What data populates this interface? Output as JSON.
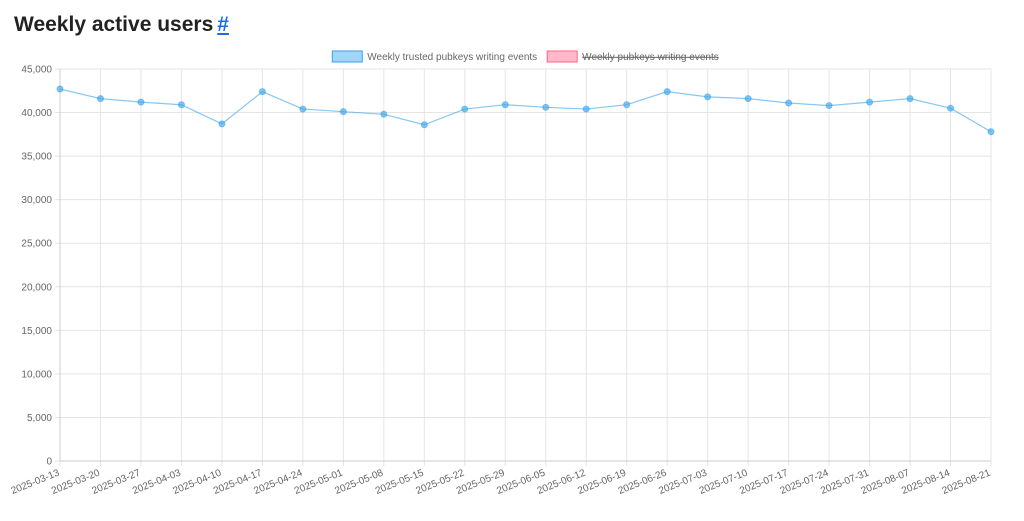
{
  "page": {
    "title": "Weekly active users",
    "link": "#"
  },
  "chart_data": {
    "type": "line",
    "categories": [
      "2025-03-13",
      "2025-03-20",
      "2025-03-27",
      "2025-04-03",
      "2025-04-10",
      "2025-04-17",
      "2025-04-24",
      "2025-05-01",
      "2025-05-08",
      "2025-05-15",
      "2025-05-22",
      "2025-05-29",
      "2025-06-05",
      "2025-06-12",
      "2025-06-19",
      "2025-06-26",
      "2025-07-03",
      "2025-07-10",
      "2025-07-17",
      "2025-07-24",
      "2025-07-31",
      "2025-08-07",
      "2025-08-14",
      "2025-08-21"
    ],
    "series": [
      {
        "name": "Weekly trusted pubkeys writing events",
        "color": "#36a2eb",
        "hidden": false,
        "values": [
          42700,
          41600,
          41200,
          40900,
          38700,
          42400,
          40400,
          40100,
          39800,
          38600,
          40400,
          40900,
          40600,
          40400,
          40900,
          42400,
          41800,
          41600,
          41100,
          40800,
          41200,
          41600,
          40500,
          37800
        ]
      },
      {
        "name": "Weekly pubkeys writing events",
        "color": "#ff6384",
        "hidden": true,
        "values": [
          null,
          null,
          null,
          null,
          null,
          null,
          null,
          null,
          null,
          null,
          null,
          null,
          null,
          null,
          null,
          null,
          null,
          null,
          null,
          null,
          null,
          null,
          null,
          null
        ]
      }
    ],
    "ylim": [
      0,
      45000
    ],
    "yticks": [
      0,
      {
        "value": 5000,
        "label": "5,000"
      },
      {
        "value": 10000,
        "label": "10,000"
      },
      {
        "value": 15000,
        "label": "15,000"
      },
      {
        "value": 20000,
        "label": "20,000"
      },
      {
        "value": 25000,
        "label": "25,000"
      },
      {
        "value": 30000,
        "label": "30,000"
      },
      {
        "value": 35000,
        "label": "35,000"
      },
      {
        "value": 40000,
        "label": "40,000"
      },
      {
        "value": 45000,
        "label": "45,000"
      }
    ],
    "grid": true
  }
}
